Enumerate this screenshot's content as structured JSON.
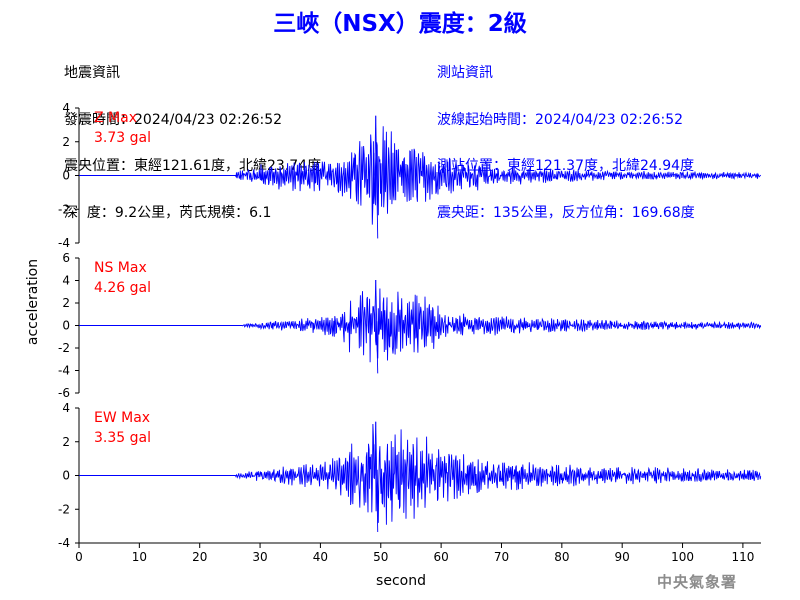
{
  "header": {
    "title": "三峽（NSX）震度：2級"
  },
  "quake_info": {
    "heading": "地震資訊",
    "lines": [
      "發震時間：2024/04/23 02:26:52",
      "震央位置：東經121.61度，北緯23.74度",
      "深  度：9.2公里，芮氏規模：6.1"
    ]
  },
  "station_info": {
    "heading": "測站資訊",
    "lines": [
      "波線起始時間：2024/04/23 02:26:52",
      "測站位置：東經121.37度，北緯24.94度",
      "震央距：135公里，反方位角：169.68度"
    ]
  },
  "watermark": "中央氣象署",
  "colors": {
    "trace": "#0000ff",
    "max_label": "#ff0000",
    "title": "#0000ff",
    "axis": "#000000",
    "watermark": "#8c8c8c"
  },
  "chart_data": {
    "type": "line",
    "xlabel": "second",
    "ylabel": "acceleration",
    "xlim": [
      0,
      113
    ],
    "x_ticks": [
      0,
      10,
      20,
      30,
      40,
      50,
      60,
      70,
      80,
      90,
      100,
      110
    ],
    "panels": [
      {
        "name": "Z",
        "max_label": "Z Max",
        "max_value": "3.73 gal",
        "ylim": [
          -4,
          4
        ],
        "y_ticks": [
          -4,
          -2,
          0,
          2,
          4
        ],
        "onset": 26,
        "peak": 3.73,
        "envelope": [
          [
            0,
            0
          ],
          [
            25.8,
            0
          ],
          [
            26,
            0.25
          ],
          [
            28,
            0.5
          ],
          [
            33,
            0.9
          ],
          [
            38,
            1.0
          ],
          [
            42,
            1.05
          ],
          [
            45,
            1.6
          ],
          [
            47,
            2.3
          ],
          [
            49,
            3.4
          ],
          [
            51,
            3.3
          ],
          [
            53,
            2.3
          ],
          [
            56,
            1.8
          ],
          [
            59,
            1.4
          ],
          [
            62,
            1.1
          ],
          [
            66,
            0.9
          ],
          [
            72,
            0.55
          ],
          [
            80,
            0.4
          ],
          [
            90,
            0.3
          ],
          [
            100,
            0.25
          ],
          [
            113,
            0.2
          ]
        ]
      },
      {
        "name": "NS",
        "max_label": "NS Max",
        "max_value": "4.26 gal",
        "ylim": [
          -6,
          6
        ],
        "y_ticks": [
          -6,
          -4,
          -2,
          0,
          2,
          4,
          6
        ],
        "onset": 27,
        "peak": 4.26,
        "envelope": [
          [
            0,
            0
          ],
          [
            26.8,
            0
          ],
          [
            27,
            0.15
          ],
          [
            30,
            0.3
          ],
          [
            35,
            0.5
          ],
          [
            40,
            0.8
          ],
          [
            43,
            1.2
          ],
          [
            45,
            2.6
          ],
          [
            47,
            3.6
          ],
          [
            49,
            3.9
          ],
          [
            51,
            3.7
          ],
          [
            54,
            3.1
          ],
          [
            57,
            2.8
          ],
          [
            58.5,
            2.7
          ],
          [
            60,
            1.4
          ],
          [
            63,
            1.1
          ],
          [
            68,
            0.9
          ],
          [
            75,
            0.7
          ],
          [
            85,
            0.55
          ],
          [
            95,
            0.4
          ],
          [
            105,
            0.35
          ],
          [
            113,
            0.3
          ]
        ]
      },
      {
        "name": "EW",
        "max_label": "EW Max",
        "max_value": "3.35 gal",
        "ylim": [
          -4,
          4
        ],
        "y_ticks": [
          -4,
          -2,
          0,
          2,
          4
        ],
        "onset": 26,
        "peak": 3.35,
        "envelope": [
          [
            0,
            0
          ],
          [
            25.8,
            0
          ],
          [
            26,
            0.15
          ],
          [
            30,
            0.35
          ],
          [
            35,
            0.6
          ],
          [
            40,
            0.8
          ],
          [
            43,
            1.3
          ],
          [
            45,
            2.3
          ],
          [
            47,
            2.9
          ],
          [
            49,
            3.3
          ],
          [
            52,
            3.2
          ],
          [
            55,
            2.8
          ],
          [
            58,
            2.3
          ],
          [
            60,
            1.8
          ],
          [
            64,
            1.3
          ],
          [
            68,
            1.0
          ],
          [
            75,
            0.8
          ],
          [
            85,
            0.6
          ],
          [
            92,
            0.55
          ],
          [
            100,
            0.45
          ],
          [
            113,
            0.35
          ]
        ]
      }
    ]
  }
}
